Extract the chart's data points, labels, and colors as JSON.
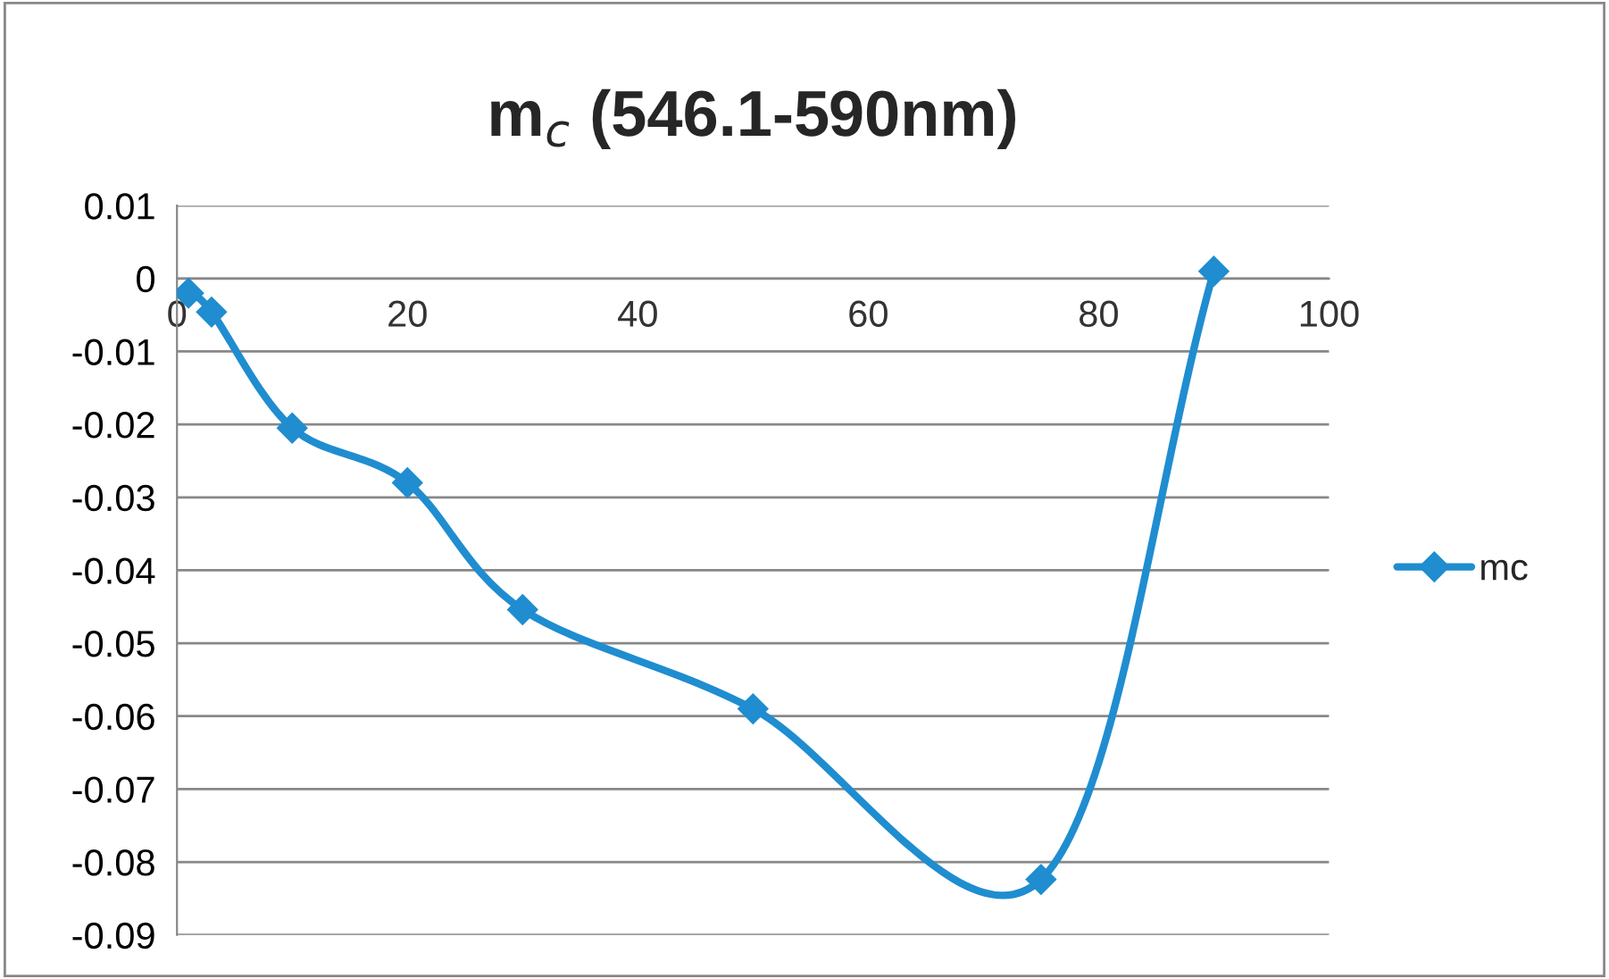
{
  "chart_data": {
    "type": "line",
    "title": "m$_{c}$ (546.1-590nm)",
    "x": [
      1,
      3,
      10,
      20,
      30,
      50,
      75,
      90
    ],
    "series": [
      {
        "name": "mc",
        "color": "#1f8dd0",
        "values": [
          -0.002,
          -0.0046,
          -0.0205,
          -0.028,
          -0.0454,
          -0.059,
          -0.0824,
          0.001
        ]
      }
    ],
    "xlim": [
      0,
      100
    ],
    "xticks": [
      0,
      20,
      40,
      60,
      80,
      100
    ],
    "ylim": [
      -0.09,
      0.01
    ],
    "yticks": [
      0.01,
      0,
      -0.01,
      -0.02,
      -0.03,
      -0.04,
      -0.05,
      -0.06,
      -0.07,
      -0.08,
      -0.09
    ],
    "grid": "y",
    "legend": "right",
    "marker": "diamond",
    "line_style": "solid"
  }
}
